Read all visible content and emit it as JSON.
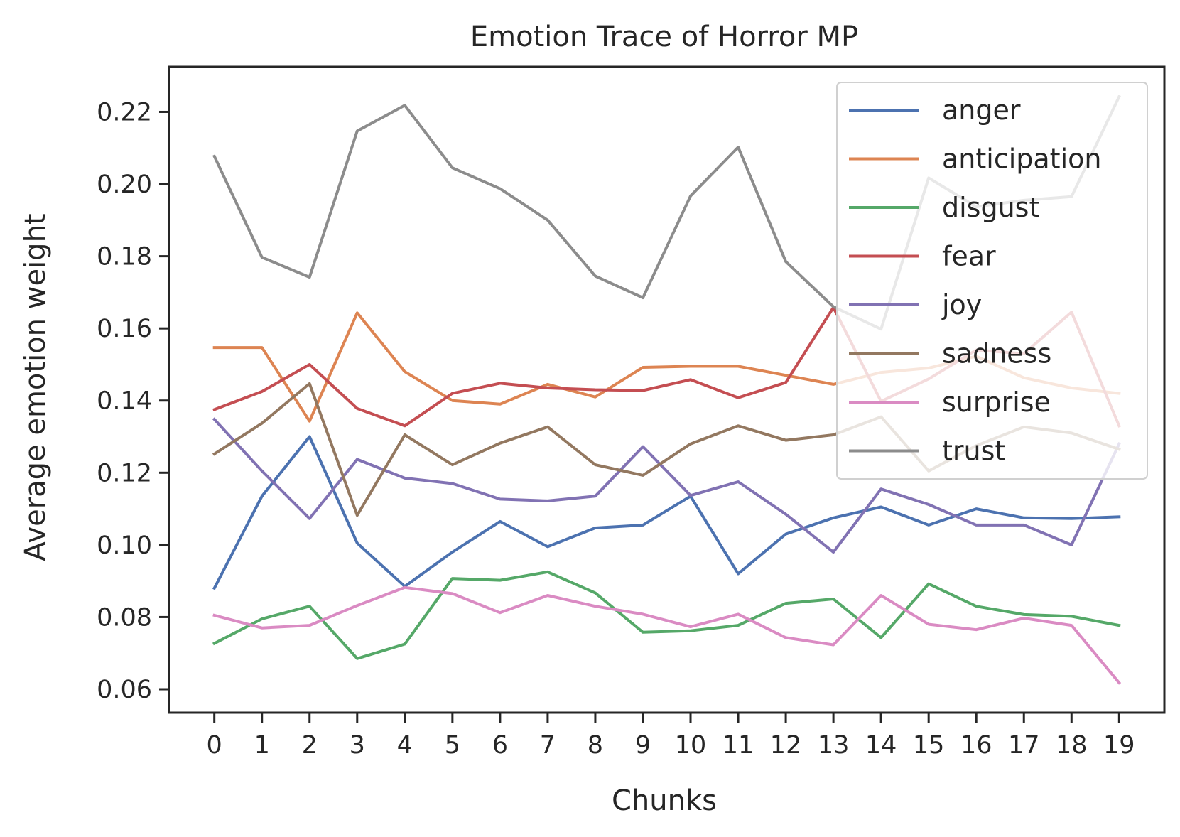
{
  "chart_data": {
    "type": "line",
    "title": "Emotion Trace of Horror MP",
    "xlabel": "Chunks",
    "ylabel": "Average emotion weight",
    "x": [
      0,
      1,
      2,
      3,
      4,
      5,
      6,
      7,
      8,
      9,
      10,
      11,
      12,
      13,
      14,
      15,
      16,
      17,
      18,
      19
    ],
    "x_tick_labels": [
      "0",
      "1",
      "2",
      "3",
      "4",
      "5",
      "6",
      "7",
      "8",
      "9",
      "10",
      "11",
      "12",
      "13",
      "14",
      "15",
      "16",
      "17",
      "18",
      "19"
    ],
    "xlim": [
      -0.95,
      19.95
    ],
    "ylim": [
      0.0535,
      0.2325
    ],
    "y_ticks": [
      0.06,
      0.08,
      0.1,
      0.12,
      0.14,
      0.16,
      0.18,
      0.2,
      0.22
    ],
    "y_tick_labels": [
      "0.06",
      "0.08",
      "0.10",
      "0.12",
      "0.14",
      "0.16",
      "0.18",
      "0.20",
      "0.22"
    ],
    "grid": false,
    "legend_position": "top-right",
    "series": [
      {
        "name": "anger",
        "color": "#4c72b0",
        "values": [
          0.088,
          0.1135,
          0.13,
          0.1005,
          0.0885,
          0.098,
          0.1065,
          0.0995,
          0.1047,
          0.1055,
          0.1135,
          0.092,
          0.103,
          0.1075,
          0.1105,
          0.1055,
          0.11,
          0.1075,
          0.1073,
          0.1078
        ]
      },
      {
        "name": "anticipation",
        "color": "#dd8452",
        "values": [
          0.1547,
          0.1547,
          0.1343,
          0.1643,
          0.148,
          0.14,
          0.139,
          0.1445,
          0.141,
          0.1492,
          0.1495,
          0.1495,
          0.147,
          0.1445,
          0.1478,
          0.149,
          0.1523,
          0.1463,
          0.1435,
          0.142
        ]
      },
      {
        "name": "disgust",
        "color": "#55a868",
        "values": [
          0.0727,
          0.0795,
          0.083,
          0.0685,
          0.0725,
          0.0907,
          0.0902,
          0.0925,
          0.0867,
          0.0758,
          0.0762,
          0.0777,
          0.0838,
          0.085,
          0.0743,
          0.0892,
          0.083,
          0.0807,
          0.0802,
          0.0777
        ]
      },
      {
        "name": "fear",
        "color": "#c44e52",
        "values": [
          0.1375,
          0.1425,
          0.15,
          0.1378,
          0.133,
          0.142,
          0.1448,
          0.1435,
          0.143,
          0.1428,
          0.1458,
          0.1408,
          0.145,
          0.1658,
          0.1398,
          0.146,
          0.154,
          0.153,
          0.1645,
          0.133
        ]
      },
      {
        "name": "joy",
        "color": "#8172b3",
        "values": [
          0.1348,
          0.1205,
          0.1073,
          0.1237,
          0.1185,
          0.117,
          0.1127,
          0.1122,
          0.1135,
          0.1272,
          0.1137,
          0.1175,
          0.1085,
          0.098,
          0.1155,
          0.1112,
          0.1055,
          0.1055,
          0.1,
          0.128
        ]
      },
      {
        "name": "sadness",
        "color": "#937860",
        "values": [
          0.1252,
          0.1337,
          0.1447,
          0.1082,
          0.1305,
          0.1222,
          0.1282,
          0.1327,
          0.1222,
          0.1193,
          0.128,
          0.133,
          0.129,
          0.1305,
          0.1355,
          0.1205,
          0.1275,
          0.1327,
          0.131,
          0.1265
        ]
      },
      {
        "name": "surprise",
        "color": "#da8bc3",
        "values": [
          0.0805,
          0.077,
          0.0777,
          0.0832,
          0.0882,
          0.0865,
          0.0812,
          0.086,
          0.083,
          0.0808,
          0.0773,
          0.0808,
          0.0743,
          0.0723,
          0.086,
          0.078,
          0.0765,
          0.0797,
          0.0777,
          0.0618
        ]
      },
      {
        "name": "trust",
        "color": "#8c8c8c",
        "values": [
          0.2077,
          0.1797,
          0.1742,
          0.2147,
          0.2218,
          0.2045,
          0.1987,
          0.19,
          0.1745,
          0.1685,
          0.1967,
          0.2102,
          0.1785,
          0.166,
          0.1598,
          0.2017,
          0.1937,
          0.1955,
          0.1965,
          0.2242
        ]
      }
    ]
  }
}
